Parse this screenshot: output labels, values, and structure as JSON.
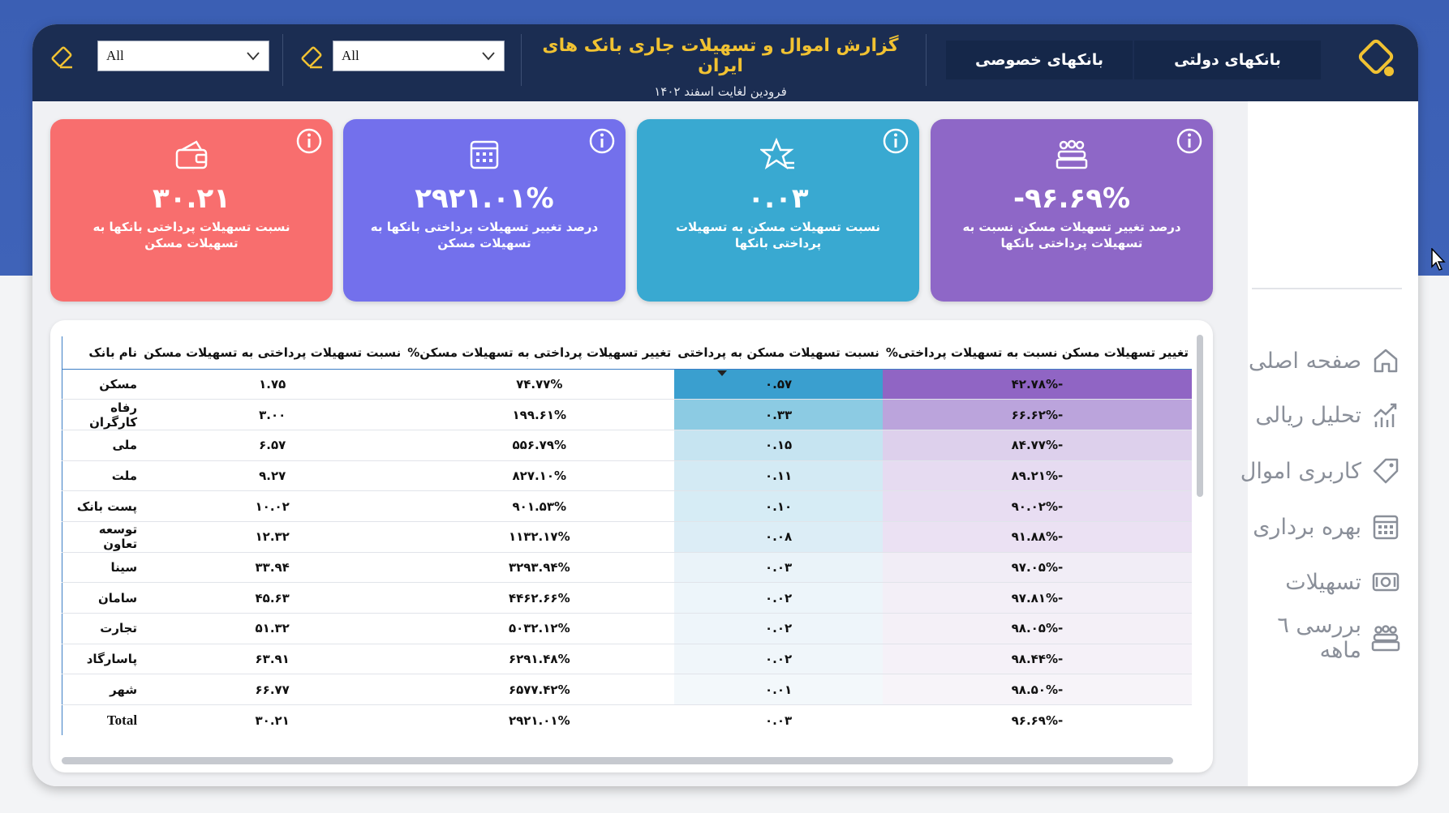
{
  "header": {
    "title": "گزارش اموال و تسهیلات جاری بانک های ایران",
    "subtitle": "فرودین لغایت اسفند ۱۴۰۲",
    "nav": {
      "gov_label": "بانکهای دولتی",
      "private_label": "بانکهای خصوصی"
    },
    "filters": [
      {
        "value": "All"
      },
      {
        "value": "All"
      }
    ]
  },
  "sidebar": {
    "items": [
      {
        "label": "صفحه اصلی",
        "icon": "home-icon"
      },
      {
        "label": "تحلیل ریالی",
        "icon": "chart-icon"
      },
      {
        "label": "کاربری اموال",
        "icon": "tag-icon"
      },
      {
        "label": "بهره برداری",
        "icon": "calendar-icon"
      },
      {
        "label": "تسهیلات",
        "icon": "money-icon"
      },
      {
        "label": "بررسی ٦ ماهه",
        "icon": "people-icon"
      }
    ]
  },
  "cards": [
    {
      "value": "-۹۶.۶۹%",
      "label": "درصد تغییر تسهیلات مسکن نسبت به تسهیلات پرداختی بانکها",
      "icon": "people-icon",
      "color": "#8e67c7"
    },
    {
      "value": "۰.۰۳",
      "label": "نسبت تسهیلات مسکن به تسهیلات پرداختی بانکها",
      "icon": "star-icon",
      "color": "#39a9d1"
    },
    {
      "value": "۲۹۲۱.۰۱%",
      "label": "درصد تغییر تسهیلات پرداختی بانکها به تسهیلات مسکن",
      "icon": "calendar-icon",
      "color": "#7370ec"
    },
    {
      "value": "۳۰.۲۱",
      "label": "نسبت تسهیلات پرداختی بانکها به تسهیلات مسکن",
      "icon": "wallet-icon",
      "color": "#f86e6e"
    }
  ],
  "table": {
    "headers": {
      "name": "نام بانک",
      "ratio_paid": "نسبت تسهیلات پرداختی به تسهیلات مسکن",
      "change_paid": "تغییر تسهیلات پرداختی به تسهیلات مسکن%",
      "ratio_housing": "نسبت تسهیلات مسکن به پرداختی",
      "change_housing": "تغییر تسهیلات مسکن نسبت به تسهیلات پرداختی%"
    },
    "rows": [
      {
        "name": "مسکن",
        "ratio_paid": "۱.۷۵",
        "change_paid": "۷۴.۷۷%",
        "ratio_housing": "۰.۵۷",
        "change_housing": "-۴۲.۷۸%",
        "h_bg": "#3a9fcf",
        "c_bg": "#9065c4"
      },
      {
        "name": "رفاه کارگران",
        "ratio_paid": "۳.۰۰",
        "change_paid": "۱۹۹.۶۱%",
        "ratio_housing": "۰.۳۳",
        "change_housing": "-۶۶.۶۲%",
        "h_bg": "#8ccbe3",
        "c_bg": "#bba4dc"
      },
      {
        "name": "ملی",
        "ratio_paid": "۶.۵۷",
        "change_paid": "۵۵۶.۷۹%",
        "ratio_housing": "۰.۱۵",
        "change_housing": "-۸۴.۷۷%",
        "h_bg": "#c6e4f1",
        "c_bg": "#ddd0ec"
      },
      {
        "name": "ملت",
        "ratio_paid": "۹.۲۷",
        "change_paid": "۸۲۷.۱۰%",
        "ratio_housing": "۰.۱۱",
        "change_housing": "-۸۹.۲۱%",
        "h_bg": "#d3eaf4",
        "c_bg": "#e6dbf1"
      },
      {
        "name": "پست بانک",
        "ratio_paid": "۱۰.۰۲",
        "change_paid": "۹۰۱.۵۳%",
        "ratio_housing": "۰.۱۰",
        "change_housing": "-۹۰.۰۲%",
        "h_bg": "#d6ecf5",
        "c_bg": "#e8ddf2"
      },
      {
        "name": "توسعه تعاون",
        "ratio_paid": "۱۲.۳۲",
        "change_paid": "۱۱۳۲.۱۷%",
        "ratio_housing": "۰.۰۸",
        "change_housing": "-۹۱.۸۸%",
        "h_bg": "#dcedf6",
        "c_bg": "#ebe1f3"
      },
      {
        "name": "سینا",
        "ratio_paid": "۳۳.۹۴",
        "change_paid": "۳۲۹۳.۹۴%",
        "ratio_housing": "۰.۰۳",
        "change_housing": "-۹۷.۰۵%",
        "h_bg": "#eaf3f9",
        "c_bg": "#f1edf6"
      },
      {
        "name": "سامان",
        "ratio_paid": "۴۵.۶۳",
        "change_paid": "۴۴۶۲.۶۶%",
        "ratio_housing": "۰.۰۲",
        "change_housing": "-۹۷.۸۱%",
        "h_bg": "#edf5fa",
        "c_bg": "#f3eff7"
      },
      {
        "name": "تجارت",
        "ratio_paid": "۵۱.۳۲",
        "change_paid": "۵۰۳۲.۱۲%",
        "ratio_housing": "۰.۰۲",
        "change_housing": "-۹۸.۰۵%",
        "h_bg": "#eef5fa",
        "c_bg": "#f4f0f7"
      },
      {
        "name": "پاسارگاد",
        "ratio_paid": "۶۳.۹۱",
        "change_paid": "۶۲۹۱.۴۸%",
        "ratio_housing": "۰.۰۲",
        "change_housing": "-۹۸.۴۴%",
        "h_bg": "#f0f6fa",
        "c_bg": "#f5f1f8"
      },
      {
        "name": "شهر",
        "ratio_paid": "۶۶.۷۷",
        "change_paid": "۶۵۷۷.۴۲%",
        "ratio_housing": "۰.۰۱",
        "change_housing": "-۹۸.۵۰%",
        "h_bg": "#f3f8fb",
        "c_bg": "#f7f4f9"
      }
    ],
    "total": {
      "name": "Total",
      "ratio_paid": "۳۰.۲۱",
      "change_paid": "۲۹۲۱.۰۱%",
      "ratio_housing": "۰.۰۳",
      "change_housing": "-۹۶.۶۹%"
    }
  }
}
